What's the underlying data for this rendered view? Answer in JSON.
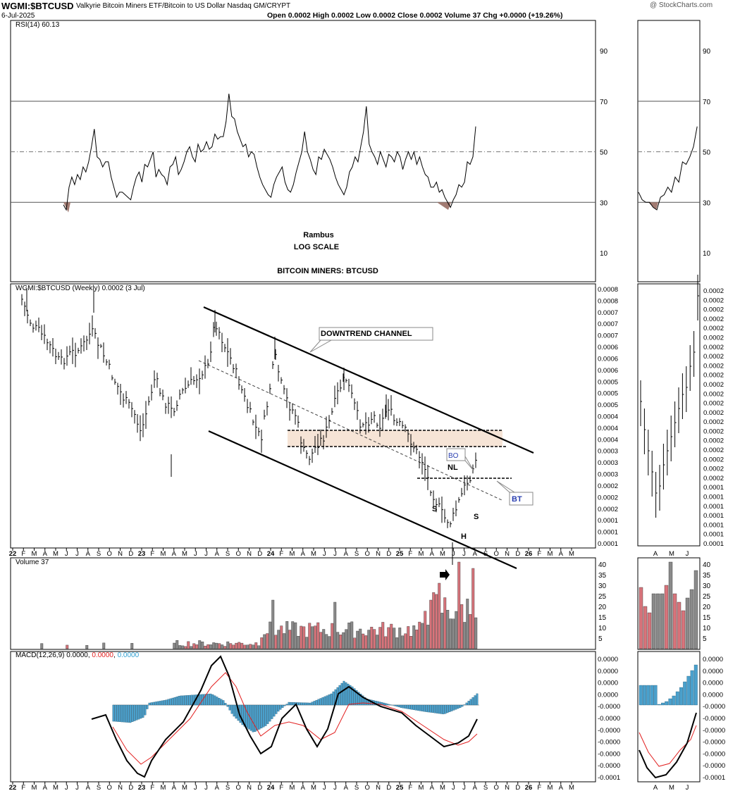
{
  "header": {
    "symbol": "WGMI:$BTCUSD",
    "description": "Valkyrie Bitcoin Miners ETF/Bitcoin to US Dollar  Nasdaq GM/CRYPT",
    "date": "6-Jul-2025",
    "ohlc": "Open 0.0002  High 0.0002  Low 0.0002  Close 0.0002  Volume 37  Chg +0.0000 (+19.26%)",
    "watermark": "@ StockCharts.com"
  },
  "rsi": {
    "label": "RSI(14) 60.13",
    "ticks": [
      "90",
      "70",
      "50",
      "30",
      "10"
    ],
    "tick_values": [
      90,
      70,
      50,
      30,
      10
    ],
    "ylim": [
      0,
      100
    ],
    "overbought": 70,
    "oversold": 30,
    "mid": 50,
    "values": [
      29,
      27,
      36,
      40,
      37,
      41,
      39,
      44,
      42,
      46,
      52,
      59,
      48,
      47,
      44,
      46,
      46,
      40,
      36,
      32,
      34,
      34,
      33,
      32,
      31,
      36,
      40,
      42,
      38,
      45,
      44,
      47,
      50,
      40,
      43,
      41,
      40,
      37,
      44,
      45,
      48,
      41,
      43,
      46,
      50,
      52,
      48,
      46,
      53,
      50,
      51,
      54,
      51,
      52,
      57,
      55,
      56,
      56,
      62,
      73,
      64,
      63,
      58,
      55,
      52,
      53,
      48,
      50,
      49,
      44,
      40,
      37,
      35,
      33,
      32,
      37,
      40,
      42,
      44,
      38,
      35,
      34,
      37,
      42,
      46,
      50,
      58,
      50,
      47,
      43,
      41,
      48,
      47,
      51,
      49,
      47,
      44,
      40,
      37,
      35,
      33,
      36,
      42,
      44,
      48,
      46,
      52,
      58,
      68,
      53,
      50,
      48,
      45,
      50,
      47,
      44,
      49,
      48,
      46,
      50,
      48,
      43,
      47,
      50,
      47,
      50,
      45,
      48,
      44,
      41,
      40,
      36,
      36,
      38,
      34,
      35,
      32,
      30,
      28,
      31,
      33,
      37,
      36,
      38,
      46,
      45,
      48,
      60
    ]
  },
  "labels": {
    "rambus": "Rambus",
    "log_scale": "LOG SCALE",
    "title": "BITCOIN MINERS: BTCUSD"
  },
  "price": {
    "label": "WGMI:$BTCUSD (Weekly) 0.0002 (3 Jul)",
    "axis_ticks": [
      "0.0008",
      "0.0008",
      "0.0007",
      "0.0007",
      "0.0007",
      "0.0006",
      "0.0006",
      "0.0006",
      "0.0005",
      "0.0005",
      "0.0005",
      "0.0004",
      "0.0004",
      "0.0004",
      "0.0003",
      "0.0003",
      "0.0003",
      "0.0002",
      "0.0002",
      "0.0002",
      "0.0001",
      "0.0001",
      "0.0001"
    ],
    "inset_ticks": [
      "0.0002",
      "0.0002",
      "0.0002",
      "0.0002",
      "0.0002",
      "0.0002",
      "0.0002",
      "0.0002",
      "0.0002",
      "0.0002",
      "0.0002",
      "0.0002",
      "0.0002",
      "0.0002",
      "0.0002",
      "0.0002",
      "0.0002",
      "0.0002",
      "0.0002",
      "0.0002",
      "0.0002",
      "0.0001",
      "0.0001",
      "0.0001",
      "0.0001",
      "0.0001",
      "0.0001",
      "0.0001"
    ],
    "annotations": {
      "channel": "DOWNTREND CHANNEL",
      "bo": "BO",
      "nl": "NL",
      "bt": "BT",
      "s1": "S",
      "h": "H",
      "s2": "S"
    }
  },
  "volume": {
    "label": "Volume 37",
    "ticks": [
      "40",
      "35",
      "30",
      "25",
      "20",
      "15",
      "10",
      "5"
    ],
    "tick_values": [
      40,
      35,
      30,
      25,
      20,
      15,
      10,
      5
    ]
  },
  "macd": {
    "label_prefix": "MACD(12,26,9)",
    "macd_value": "0.0000",
    "signal_value": "0.0000",
    "hist_value": "0.0000",
    "ticks": [
      "0.0000",
      "0.0000",
      "0.0000",
      "0.0000",
      "-0.0000",
      "-0.0000",
      "-0.0000",
      "-0.0000",
      "-0.0000",
      "-0.0000",
      "-0.0001"
    ]
  },
  "x_axis": {
    "labels": [
      "22",
      "F",
      "M",
      "A",
      "M",
      "J",
      "J",
      "A",
      "S",
      "O",
      "N",
      "D",
      "23",
      "F",
      "M",
      "A",
      "M",
      "J",
      "J",
      "A",
      "S",
      "O",
      "N",
      "D",
      "24",
      "F",
      "M",
      "A",
      "M",
      "J",
      "J",
      "A",
      "S",
      "O",
      "N",
      "D",
      "25",
      "F",
      "M",
      "A",
      "M",
      "J",
      "J",
      "A",
      "S",
      "O",
      "N",
      "D",
      "26",
      "F",
      "M",
      "A",
      "M"
    ],
    "bold": [
      "22",
      "23",
      "24",
      "25",
      "26"
    ],
    "inset_labels": [
      "A",
      "M",
      "J"
    ]
  },
  "colors": {
    "up_volume": "#d8747b",
    "down_volume": "#8a8a8a",
    "macd_hist": "#4aa0cc",
    "signal": "#e22020",
    "rsi_shade": "#a27b72",
    "resistance_zone": "#f6e4d6"
  }
}
